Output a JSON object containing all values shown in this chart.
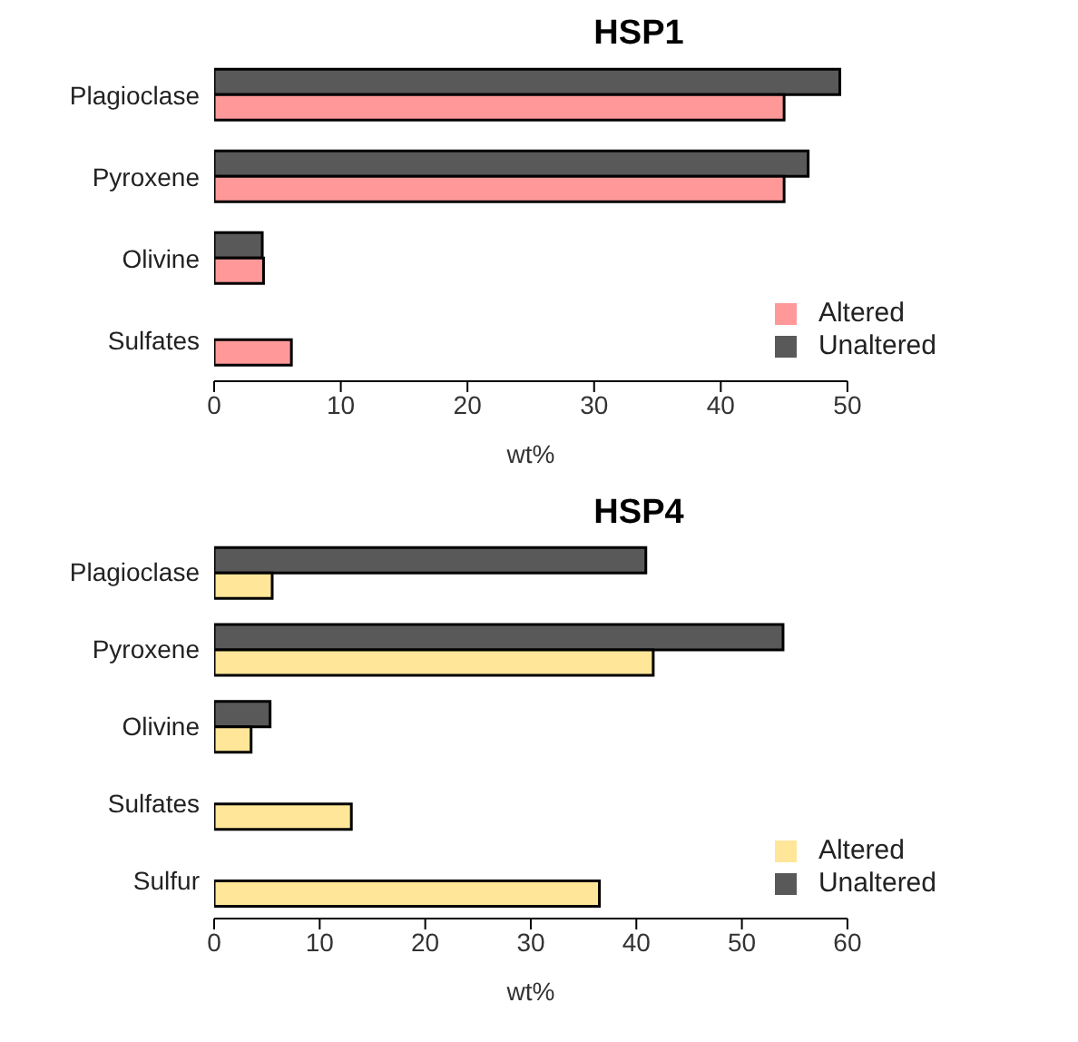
{
  "chart_data": [
    {
      "type": "bar",
      "orientation": "horizontal",
      "title": "HSP1",
      "xlabel": "wt%",
      "categories": [
        "Plagioclase",
        "Pyroxene",
        "Olivine",
        "Sulfates"
      ],
      "series": [
        {
          "name": "Unaltered",
          "color": "#595959",
          "values": [
            49.4,
            46.9,
            3.8,
            null
          ]
        },
        {
          "name": "Altered",
          "color": "#ff9999",
          "values": [
            45.0,
            45.0,
            3.9,
            6.1
          ]
        }
      ],
      "xlim": [
        0,
        50
      ],
      "xticks": [
        0,
        10,
        20,
        30,
        40,
        50
      ],
      "legend": "bottom right",
      "grid": false
    },
    {
      "type": "bar",
      "orientation": "horizontal",
      "title": "HSP4",
      "xlabel": "wt%",
      "categories": [
        "Plagioclase",
        "Pyroxene",
        "Olivine",
        "Sulfates",
        "Sulfur"
      ],
      "series": [
        {
          "name": "Unaltered",
          "color": "#595959",
          "values": [
            40.9,
            53.9,
            5.3,
            null,
            null
          ]
        },
        {
          "name": "Altered",
          "color": "#ffe699",
          "values": [
            5.5,
            41.6,
            3.5,
            13.0,
            36.5
          ]
        }
      ],
      "xlim": [
        0,
        60
      ],
      "xticks": [
        0,
        10,
        20,
        30,
        40,
        50,
        60
      ],
      "legend": "bottom right",
      "grid": false
    }
  ]
}
